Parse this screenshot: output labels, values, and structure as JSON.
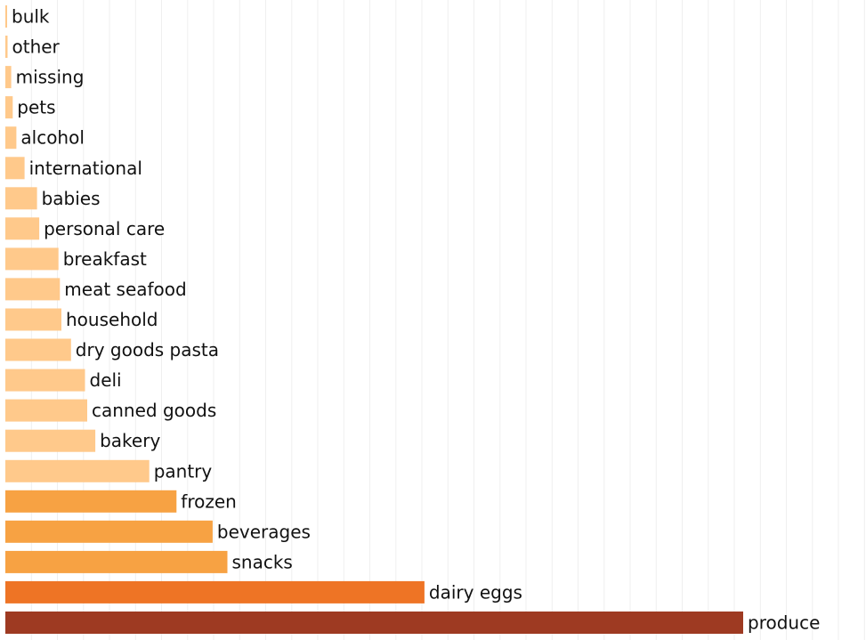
{
  "chart_data": {
    "type": "bar",
    "orientation": "horizontal",
    "title": "",
    "xlabel": "",
    "ylabel": "",
    "xlim": [
      0,
      100
    ],
    "grid": "vertical",
    "legend": "none",
    "bar_labels": "right of bar",
    "color_scale": [
      "#ffc98b",
      "#f7a243",
      "#ee7425",
      "#9e3a22"
    ],
    "categories": [
      "bulk",
      "other",
      "missing",
      "pets",
      "alcohol",
      "international",
      "babies",
      "personal care",
      "breakfast",
      "meat seafood",
      "household",
      "dry goods pasta",
      "deli",
      "canned goods",
      "bakery",
      "pantry",
      "frozen",
      "beverages",
      "snacks",
      "dairy eggs",
      "produce"
    ],
    "values": [
      0.2,
      0.3,
      0.8,
      1.0,
      1.5,
      2.6,
      4.3,
      4.6,
      7.2,
      7.4,
      7.6,
      8.9,
      10.8,
      11.1,
      12.2,
      19.5,
      23.2,
      28.1,
      30.1,
      56.8,
      100
    ]
  }
}
